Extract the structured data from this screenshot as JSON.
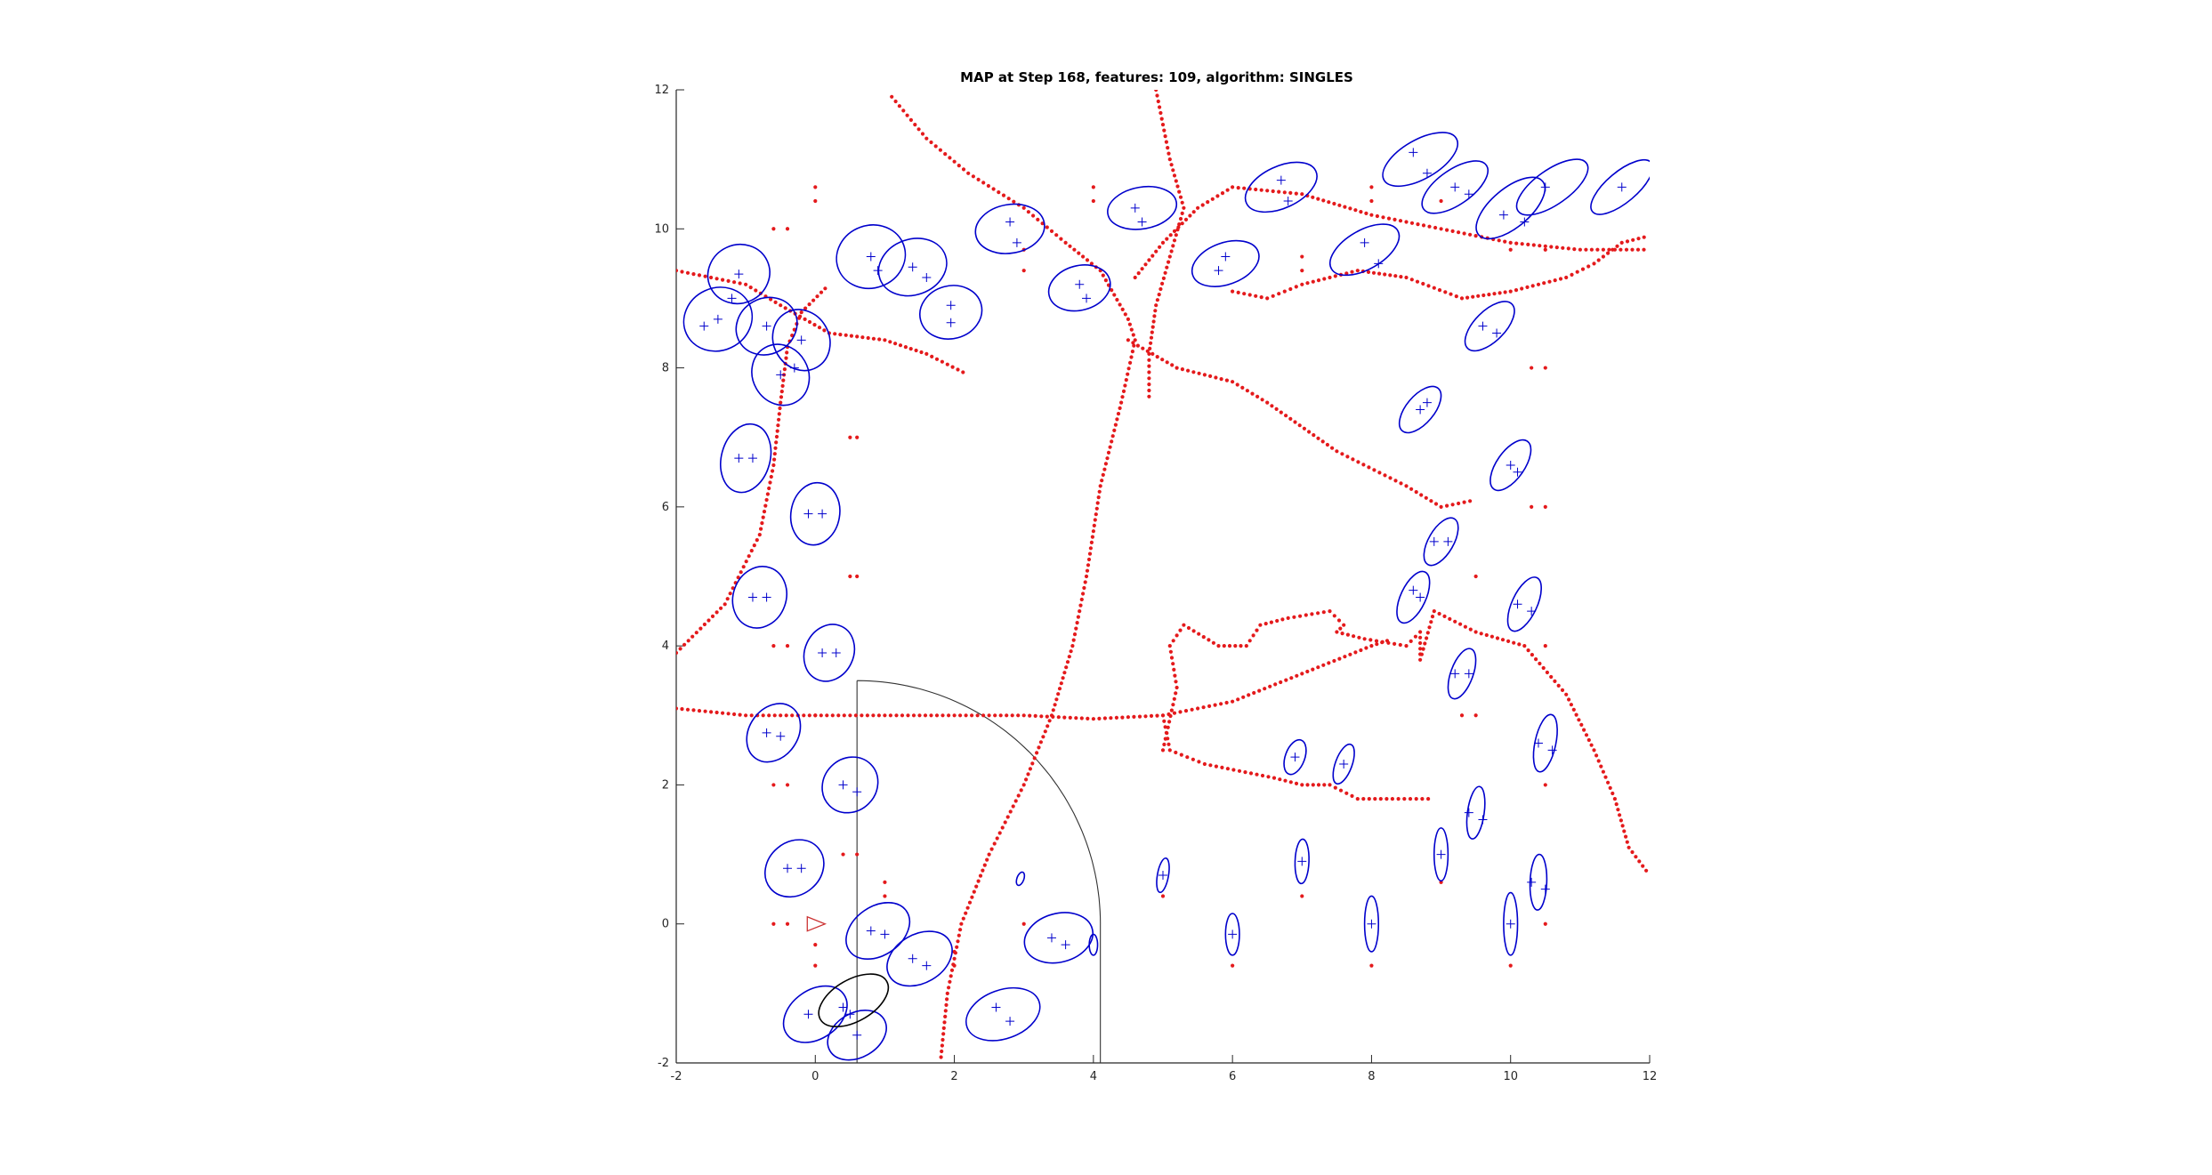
{
  "chart_data": {
    "type": "scatter",
    "title": "MAP at Step 168, features: 109, algorithm: SINGLES",
    "xlabel": "",
    "ylabel": "",
    "xlim": [
      -2,
      12
    ],
    "ylim": [
      -2,
      12
    ],
    "xticks": [
      -2,
      0,
      2,
      4,
      6,
      8,
      10,
      12
    ],
    "yticks": [
      -2,
      0,
      2,
      4,
      6,
      8,
      10,
      12
    ],
    "xtick_labels": [
      "-2",
      "0",
      "2",
      "4",
      "6",
      "8",
      "10",
      "12"
    ],
    "ytick_labels": [
      "-2",
      "0",
      "2",
      "4",
      "6",
      "8",
      "10",
      "12"
    ],
    "grid": false,
    "colors": {
      "trajectory": "#e41a1c",
      "ellipse": "#0000cc",
      "feature_marker": "#0000cc",
      "sensor_range": "#333333",
      "robot": "#cc3333",
      "axis": "#262626",
      "dots": "#e41a1c"
    },
    "robot_pose": {
      "x": 0,
      "y": 0,
      "heading_deg": 0
    },
    "sensor_range": {
      "center": [
        0.6,
        0
      ],
      "radius": 3.5,
      "start_deg": 0,
      "end_deg": 90
    },
    "trajectory_polylines": [
      [
        [
          1.1,
          11.9
        ],
        [
          1.6,
          11.3
        ],
        [
          2.2,
          10.8
        ],
        [
          3.0,
          10.3
        ],
        [
          3.6,
          9.8
        ],
        [
          4.1,
          9.4
        ],
        [
          4.5,
          8.7
        ],
        [
          4.6,
          8.4
        ],
        [
          4.4,
          7.5
        ],
        [
          4.1,
          6.3
        ],
        [
          3.9,
          5.0
        ],
        [
          3.7,
          4.0
        ],
        [
          3.4,
          3.0
        ],
        [
          3.0,
          2.0
        ],
        [
          2.5,
          1.0
        ],
        [
          2.1,
          0.0
        ],
        [
          1.9,
          -1.0
        ],
        [
          1.8,
          -2.0
        ]
      ],
      [
        [
          4.9,
          12.0
        ],
        [
          5.1,
          11.0
        ],
        [
          5.3,
          10.3
        ],
        [
          5.1,
          9.6
        ],
        [
          4.9,
          8.9
        ],
        [
          4.8,
          8.2
        ],
        [
          4.8,
          7.5
        ]
      ],
      [
        [
          4.6,
          9.3
        ],
        [
          5.0,
          9.8
        ],
        [
          5.5,
          10.3
        ],
        [
          6.0,
          10.6
        ],
        [
          7.0,
          10.5
        ],
        [
          8.0,
          10.2
        ],
        [
          9.0,
          10.0
        ],
        [
          10.0,
          9.8
        ],
        [
          11.0,
          9.7
        ],
        [
          12.0,
          9.7
        ]
      ],
      [
        [
          4.5,
          8.4
        ],
        [
          5.2,
          8.0
        ],
        [
          6.0,
          7.8
        ],
        [
          6.5,
          7.5
        ],
        [
          7.5,
          6.8
        ],
        [
          8.5,
          6.3
        ],
        [
          9.0,
          6.0
        ],
        [
          9.5,
          6.1
        ]
      ],
      [
        [
          6.0,
          9.1
        ],
        [
          6.5,
          9.0
        ],
        [
          7.0,
          9.2
        ],
        [
          7.8,
          9.4
        ],
        [
          8.5,
          9.3
        ],
        [
          9.3,
          9.0
        ],
        [
          10.0,
          9.1
        ],
        [
          10.8,
          9.3
        ],
        [
          11.2,
          9.5
        ],
        [
          11.6,
          9.8
        ],
        [
          12.0,
          9.9
        ]
      ],
      [
        [
          -2.0,
          3.1
        ],
        [
          -1.0,
          3.0
        ],
        [
          0.0,
          3.0
        ],
        [
          1.0,
          3.0
        ],
        [
          2.0,
          3.0
        ],
        [
          3.0,
          3.0
        ],
        [
          4.0,
          2.95
        ],
        [
          5.0,
          3.0
        ],
        [
          6.0,
          3.2
        ],
        [
          7.0,
          3.6
        ],
        [
          8.0,
          4.0
        ],
        [
          8.3,
          4.1
        ]
      ],
      [
        [
          -2.0,
          3.9
        ],
        [
          -1.3,
          4.6
        ],
        [
          -0.8,
          5.6
        ],
        [
          -0.6,
          6.6
        ],
        [
          -0.5,
          7.5
        ],
        [
          -0.4,
          8.3
        ],
        [
          -0.2,
          8.8
        ],
        [
          0.2,
          9.2
        ]
      ],
      [
        [
          -2.0,
          9.4
        ],
        [
          -1.0,
          9.2
        ],
        [
          -0.5,
          8.9
        ],
        [
          0.2,
          8.5
        ],
        [
          1.0,
          8.4
        ],
        [
          1.6,
          8.2
        ],
        [
          2.2,
          7.9
        ]
      ],
      [
        [
          5.0,
          2.5
        ],
        [
          5.2,
          3.4
        ],
        [
          5.1,
          4.0
        ],
        [
          5.3,
          4.3
        ],
        [
          5.8,
          4.0
        ],
        [
          6.2,
          4.0
        ],
        [
          6.4,
          4.3
        ],
        [
          6.8,
          4.4
        ],
        [
          7.4,
          4.5
        ],
        [
          7.6,
          4.3
        ],
        [
          7.5,
          4.2
        ],
        [
          7.9,
          4.1
        ],
        [
          8.5,
          4.0
        ],
        [
          8.7,
          4.2
        ],
        [
          8.7,
          3.8
        ],
        [
          8.9,
          4.5
        ],
        [
          9.5,
          4.2
        ],
        [
          10.2,
          4.0
        ],
        [
          10.8,
          3.3
        ],
        [
          11.2,
          2.5
        ],
        [
          11.5,
          1.8
        ],
        [
          11.7,
          1.1
        ],
        [
          12.0,
          0.7
        ]
      ],
      [
        [
          5.0,
          3.0
        ],
        [
          5.1,
          2.5
        ],
        [
          5.6,
          2.3
        ],
        [
          6.1,
          2.2
        ],
        [
          6.6,
          2.1
        ],
        [
          7.0,
          2.0
        ],
        [
          7.4,
          2.0
        ],
        [
          7.8,
          1.8
        ],
        [
          8.3,
          1.8
        ],
        [
          8.9,
          1.8
        ]
      ]
    ],
    "landmarks": [
      {
        "x": -1.1,
        "y": 9.35,
        "rx": 0.45,
        "ry": 0.42,
        "angle": 25
      },
      {
        "x": -1.4,
        "y": 8.7,
        "rx": 0.5,
        "ry": 0.45,
        "angle": 25
      },
      {
        "x": -0.7,
        "y": 8.6,
        "rx": 0.45,
        "ry": 0.4,
        "angle": 30
      },
      {
        "x": -0.5,
        "y": 7.9,
        "rx": 0.4,
        "ry": 0.45,
        "angle": 30
      },
      {
        "x": -0.2,
        "y": 8.4,
        "rx": 0.4,
        "ry": 0.45,
        "angle": 30
      },
      {
        "x": 0.8,
        "y": 9.6,
        "rx": 0.5,
        "ry": 0.45,
        "angle": 20
      },
      {
        "x": 1.4,
        "y": 9.45,
        "rx": 0.5,
        "ry": 0.4,
        "angle": 20
      },
      {
        "x": 1.95,
        "y": 8.8,
        "rx": 0.45,
        "ry": 0.38,
        "angle": 15
      },
      {
        "x": 2.8,
        "y": 10.0,
        "rx": 0.5,
        "ry": 0.35,
        "angle": 10
      },
      {
        "x": 3.8,
        "y": 9.15,
        "rx": 0.45,
        "ry": 0.32,
        "angle": 15
      },
      {
        "x": 4.7,
        "y": 10.3,
        "rx": 0.5,
        "ry": 0.3,
        "angle": 10
      },
      {
        "x": 5.9,
        "y": 9.5,
        "rx": 0.5,
        "ry": 0.3,
        "angle": 20
      },
      {
        "x": 6.7,
        "y": 10.6,
        "rx": 0.55,
        "ry": 0.3,
        "angle": 25
      },
      {
        "x": 7.9,
        "y": 9.7,
        "rx": 0.55,
        "ry": 0.28,
        "angle": 30
      },
      {
        "x": 8.7,
        "y": 11.0,
        "rx": 0.6,
        "ry": 0.28,
        "angle": 30
      },
      {
        "x": 9.2,
        "y": 10.6,
        "rx": 0.55,
        "ry": 0.25,
        "angle": 35
      },
      {
        "x": 10.0,
        "y": 10.3,
        "rx": 0.6,
        "ry": 0.28,
        "angle": 40
      },
      {
        "x": 10.6,
        "y": 10.6,
        "rx": 0.6,
        "ry": 0.25,
        "angle": 35
      },
      {
        "x": 11.6,
        "y": 10.6,
        "rx": 0.55,
        "ry": 0.22,
        "angle": 40
      },
      {
        "x": 9.7,
        "y": 8.6,
        "rx": 0.45,
        "ry": 0.22,
        "angle": 45
      },
      {
        "x": 8.7,
        "y": 7.4,
        "rx": 0.4,
        "ry": 0.2,
        "angle": 50
      },
      {
        "x": 10.0,
        "y": 6.6,
        "rx": 0.42,
        "ry": 0.2,
        "angle": 55
      },
      {
        "x": 9.0,
        "y": 5.5,
        "rx": 0.38,
        "ry": 0.18,
        "angle": 60
      },
      {
        "x": 8.6,
        "y": 4.7,
        "rx": 0.4,
        "ry": 0.18,
        "angle": 65
      },
      {
        "x": 10.2,
        "y": 4.6,
        "rx": 0.42,
        "ry": 0.18,
        "angle": 65
      },
      {
        "x": 9.3,
        "y": 3.6,
        "rx": 0.38,
        "ry": 0.16,
        "angle": 70
      },
      {
        "x": 10.5,
        "y": 2.6,
        "rx": 0.42,
        "ry": 0.15,
        "angle": 78
      },
      {
        "x": 9.5,
        "y": 1.6,
        "rx": 0.38,
        "ry": 0.12,
        "angle": 82
      },
      {
        "x": 10.4,
        "y": 0.6,
        "rx": 0.4,
        "ry": 0.12,
        "angle": 88
      },
      {
        "x": 6.9,
        "y": 2.4,
        "rx": 0.26,
        "ry": 0.14,
        "angle": 70
      },
      {
        "x": 7.6,
        "y": 2.3,
        "rx": 0.3,
        "ry": 0.12,
        "angle": 70
      },
      {
        "x": 7.0,
        "y": 0.9,
        "rx": 0.32,
        "ry": 0.1,
        "angle": 88
      },
      {
        "x": 8.0,
        "y": 0.0,
        "rx": 0.4,
        "ry": 0.1,
        "angle": 90
      },
      {
        "x": 9.0,
        "y": 1.0,
        "rx": 0.38,
        "ry": 0.1,
        "angle": 90
      },
      {
        "x": 10.0,
        "y": 0.0,
        "rx": 0.45,
        "ry": 0.1,
        "angle": 90
      },
      {
        "x": 6.0,
        "y": -0.15,
        "rx": 0.3,
        "ry": 0.1,
        "angle": 90
      },
      {
        "x": 5.0,
        "y": 0.7,
        "rx": 0.25,
        "ry": 0.08,
        "angle": 80
      },
      {
        "x": -1.0,
        "y": 6.7,
        "rx": 0.5,
        "ry": 0.35,
        "angle": 75
      },
      {
        "x": -0.8,
        "y": 4.7,
        "rx": 0.45,
        "ry": 0.38,
        "angle": 70
      },
      {
        "x": 0.0,
        "y": 5.9,
        "rx": 0.45,
        "ry": 0.35,
        "angle": 80
      },
      {
        "x": 0.2,
        "y": 3.9,
        "rx": 0.42,
        "ry": 0.35,
        "angle": 65
      },
      {
        "x": -0.6,
        "y": 2.75,
        "rx": 0.45,
        "ry": 0.35,
        "angle": 55
      },
      {
        "x": 0.5,
        "y": 2.0,
        "rx": 0.42,
        "ry": 0.38,
        "angle": 45
      },
      {
        "x": -0.3,
        "y": 0.8,
        "rx": 0.45,
        "ry": 0.38,
        "angle": 40
      },
      {
        "x": 0.9,
        "y": -0.1,
        "rx": 0.5,
        "ry": 0.35,
        "angle": 35
      },
      {
        "x": 1.5,
        "y": -0.5,
        "rx": 0.5,
        "ry": 0.35,
        "angle": 30
      },
      {
        "x": 2.7,
        "y": -1.3,
        "rx": 0.55,
        "ry": 0.35,
        "angle": 20
      },
      {
        "x": 3.5,
        "y": -0.2,
        "rx": 0.5,
        "ry": 0.35,
        "angle": 15
      },
      {
        "x": 0.0,
        "y": -1.3,
        "rx": 0.5,
        "ry": 0.35,
        "angle": 35
      },
      {
        "x": 0.6,
        "y": -1.6,
        "rx": 0.45,
        "ry": 0.32,
        "angle": 30
      },
      {
        "x": 4.0,
        "y": -0.3,
        "rx": 0.15,
        "ry": 0.06,
        "angle": 90
      },
      {
        "x": 2.95,
        "y": 0.65,
        "rx": 0.1,
        "ry": 0.05,
        "angle": 70
      }
    ],
    "highlight_landmark": {
      "x": 0.55,
      "y": -1.1,
      "rx": 0.55,
      "ry": 0.3,
      "angle": 30
    },
    "feature_markers": [
      [
        -1.1,
        9.35
      ],
      [
        -1.2,
        9.0
      ],
      [
        -1.4,
        8.7
      ],
      [
        -1.6,
        8.6
      ],
      [
        -0.7,
        8.6
      ],
      [
        -0.5,
        7.9
      ],
      [
        -0.2,
        8.4
      ],
      [
        -0.3,
        8.0
      ],
      [
        0.8,
        9.6
      ],
      [
        0.9,
        9.4
      ],
      [
        1.4,
        9.45
      ],
      [
        1.6,
        9.3
      ],
      [
        1.95,
        8.9
      ],
      [
        1.95,
        8.65
      ],
      [
        2.8,
        10.1
      ],
      [
        2.9,
        9.8
      ],
      [
        3.8,
        9.2
      ],
      [
        3.9,
        9.0
      ],
      [
        4.6,
        10.3
      ],
      [
        4.7,
        10.1
      ],
      [
        5.9,
        9.6
      ],
      [
        5.8,
        9.4
      ],
      [
        6.7,
        10.7
      ],
      [
        6.8,
        10.4
      ],
      [
        7.9,
        9.8
      ],
      [
        8.1,
        9.5
      ],
      [
        8.6,
        11.1
      ],
      [
        8.8,
        10.8
      ],
      [
        9.2,
        10.6
      ],
      [
        9.4,
        10.5
      ],
      [
        9.9,
        10.2
      ],
      [
        10.2,
        10.1
      ],
      [
        10.5,
        10.6
      ],
      [
        11.6,
        10.6
      ],
      [
        9.6,
        8.6
      ],
      [
        9.8,
        8.5
      ],
      [
        8.7,
        7.4
      ],
      [
        8.8,
        7.5
      ],
      [
        10.0,
        6.6
      ],
      [
        10.1,
        6.5
      ],
      [
        8.9,
        5.5
      ],
      [
        9.1,
        5.5
      ],
      [
        8.6,
        4.8
      ],
      [
        8.7,
        4.7
      ],
      [
        10.1,
        4.6
      ],
      [
        10.3,
        4.5
      ],
      [
        9.2,
        3.6
      ],
      [
        9.4,
        3.6
      ],
      [
        10.4,
        2.6
      ],
      [
        10.6,
        2.5
      ],
      [
        9.4,
        1.6
      ],
      [
        9.6,
        1.5
      ],
      [
        10.3,
        0.6
      ],
      [
        10.5,
        0.5
      ],
      [
        6.9,
        2.4
      ],
      [
        7.6,
        2.3
      ],
      [
        7.0,
        0.9
      ],
      [
        8.0,
        0.0
      ],
      [
        9.0,
        1.0
      ],
      [
        10.0,
        0.0
      ],
      [
        6.0,
        -0.15
      ],
      [
        5.0,
        0.7
      ],
      [
        -1.1,
        6.7
      ],
      [
        -0.9,
        6.7
      ],
      [
        -0.9,
        4.7
      ],
      [
        -0.7,
        4.7
      ],
      [
        -0.1,
        5.9
      ],
      [
        0.1,
        5.9
      ],
      [
        0.1,
        3.9
      ],
      [
        0.3,
        3.9
      ],
      [
        -0.7,
        2.75
      ],
      [
        -0.5,
        2.7
      ],
      [
        0.4,
        2.0
      ],
      [
        0.6,
        1.9
      ],
      [
        -0.4,
        0.8
      ],
      [
        -0.2,
        0.8
      ],
      [
        0.8,
        -0.1
      ],
      [
        1.0,
        -0.15
      ],
      [
        1.4,
        -0.5
      ],
      [
        1.6,
        -0.6
      ],
      [
        2.6,
        -1.2
      ],
      [
        2.8,
        -1.4
      ],
      [
        3.4,
        -0.2
      ],
      [
        3.6,
        -0.3
      ],
      [
        -0.1,
        -1.3
      ],
      [
        0.6,
        -1.6
      ],
      [
        0.4,
        -1.2
      ],
      [
        0.5,
        -1.3
      ]
    ],
    "extra_dots": [
      [
        0.0,
        10.6
      ],
      [
        0.0,
        10.4
      ],
      [
        -0.6,
        10.0
      ],
      [
        -0.4,
        10.0
      ],
      [
        0.5,
        7.0
      ],
      [
        0.6,
        7.0
      ],
      [
        0.5,
        5.0
      ],
      [
        0.6,
        5.0
      ],
      [
        -0.6,
        4.0
      ],
      [
        -0.4,
        4.0
      ],
      [
        0.0,
        3.0
      ],
      [
        -0.6,
        2.0
      ],
      [
        -0.4,
        2.0
      ],
      [
        0.4,
        1.0
      ],
      [
        0.6,
        1.0
      ],
      [
        -0.6,
        0.0
      ],
      [
        -0.4,
        0.0
      ],
      [
        0.0,
        -0.3
      ],
      [
        0.0,
        -0.6
      ],
      [
        1.0,
        0.6
      ],
      [
        1.0,
        0.4
      ],
      [
        2.0,
        -0.4
      ],
      [
        2.0,
        -0.6
      ],
      [
        3.0,
        0.0
      ],
      [
        5.0,
        0.4
      ],
      [
        6.0,
        -0.6
      ],
      [
        7.0,
        0.4
      ],
      [
        8.0,
        -0.6
      ],
      [
        9.0,
        0.6
      ],
      [
        10.0,
        -0.6
      ],
      [
        10.5,
        0.0
      ],
      [
        10.5,
        2.0
      ],
      [
        10.5,
        4.0
      ],
      [
        10.5,
        6.0
      ],
      [
        10.3,
        6.0
      ],
      [
        10.5,
        8.0
      ],
      [
        10.3,
        8.0
      ],
      [
        9.5,
        5.0
      ],
      [
        9.5,
        3.0
      ],
      [
        9.3,
        3.0
      ],
      [
        4.0,
        10.6
      ],
      [
        4.0,
        10.4
      ],
      [
        3.0,
        9.7
      ],
      [
        3.0,
        9.4
      ],
      [
        7.0,
        9.6
      ],
      [
        7.0,
        9.4
      ],
      [
        8.0,
        10.6
      ],
      [
        8.0,
        10.4
      ],
      [
        9.0,
        10.4
      ],
      [
        10.0,
        9.7
      ],
      [
        10.5,
        9.7
      ]
    ]
  }
}
